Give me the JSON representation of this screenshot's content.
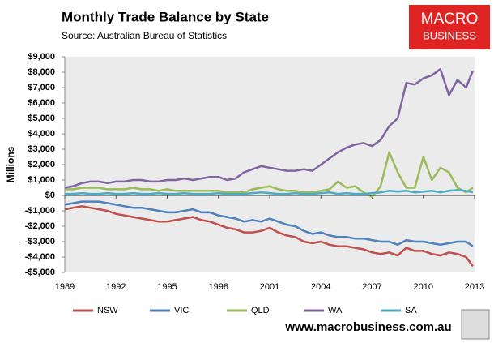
{
  "chart_data": {
    "type": "line",
    "title": "Monthly Trade Balance by State",
    "subtitle": "Source: Australian Bureau of Statistics",
    "y_label": "Millions",
    "logo": [
      "MACRO",
      "BUSINESS"
    ],
    "website": "www.macrobusiness.com.au",
    "x": [
      1989,
      1989.5,
      1990,
      1990.5,
      1991,
      1991.5,
      1992,
      1992.5,
      1993,
      1993.5,
      1994,
      1994.5,
      1995,
      1995.5,
      1996,
      1996.5,
      1997,
      1997.5,
      1998,
      1998.5,
      1999,
      1999.5,
      2000,
      2000.5,
      2001,
      2001.5,
      2002,
      2002.5,
      2003,
      2003.5,
      2004,
      2004.5,
      2005,
      2005.5,
      2006,
      2006.5,
      2007,
      2007.5,
      2008,
      2008.5,
      2009,
      2009.5,
      2010,
      2010.5,
      2011,
      2011.5,
      2012,
      2012.5,
      2012.9
    ],
    "series": [
      {
        "name": "NSW",
        "color": "#c0504d",
        "values": [
          -900,
          -800,
          -700,
          -800,
          -900,
          -1000,
          -1200,
          -1300,
          -1400,
          -1500,
          -1600,
          -1700,
          -1700,
          -1600,
          -1500,
          -1400,
          -1600,
          -1700,
          -1900,
          -2100,
          -2200,
          -2400,
          -2400,
          -2300,
          -2100,
          -2400,
          -2600,
          -2700,
          -3000,
          -3100,
          -3000,
          -3200,
          -3300,
          -3300,
          -3400,
          -3500,
          -3700,
          -3800,
          -3700,
          -3900,
          -3400,
          -3600,
          -3600,
          -3800,
          -3900,
          -3700,
          -3800,
          -4000,
          -4600
        ]
      },
      {
        "name": "VIC",
        "color": "#4f81bd",
        "values": [
          -600,
          -500,
          -400,
          -400,
          -400,
          -500,
          -600,
          -700,
          -800,
          -800,
          -900,
          -1000,
          -1100,
          -1100,
          -1000,
          -900,
          -1100,
          -1100,
          -1300,
          -1400,
          -1500,
          -1700,
          -1600,
          -1700,
          -1500,
          -1700,
          -1900,
          -2000,
          -2300,
          -2500,
          -2400,
          -2600,
          -2700,
          -2700,
          -2800,
          -2800,
          -2900,
          -3000,
          -3000,
          -3200,
          -2900,
          -3000,
          -3000,
          -3100,
          -3200,
          -3100,
          -3000,
          -3000,
          -3300
        ]
      },
      {
        "name": "QLD",
        "color": "#9bbb59",
        "values": [
          400,
          400,
          500,
          500,
          500,
          400,
          400,
          400,
          500,
          400,
          400,
          300,
          400,
          300,
          300,
          300,
          300,
          300,
          300,
          200,
          200,
          200,
          400,
          500,
          600,
          400,
          300,
          300,
          200,
          200,
          300,
          400,
          900,
          500,
          600,
          200,
          -100,
          600,
          2800,
          1500,
          500,
          500,
          2500,
          1000,
          1800,
          1500,
          500,
          200,
          500
        ]
      },
      {
        "name": "WA",
        "color": "#8064a2",
        "values": [
          500,
          600,
          800,
          900,
          900,
          800,
          900,
          900,
          1000,
          1000,
          900,
          900,
          1000,
          1000,
          1100,
          1000,
          1100,
          1200,
          1200,
          1000,
          1100,
          1500,
          1700,
          1900,
          1800,
          1700,
          1600,
          1600,
          1700,
          1600,
          2000,
          2400,
          2800,
          3100,
          3300,
          3400,
          3200,
          3600,
          4500,
          5000,
          7300,
          7200,
          7600,
          7800,
          8200,
          6500,
          7500,
          7000,
          8100
        ]
      },
      {
        "name": "SA",
        "color": "#4bacc6",
        "values": [
          100,
          100,
          150,
          100,
          100,
          150,
          100,
          100,
          150,
          100,
          100,
          150,
          100,
          100,
          150,
          100,
          100,
          100,
          150,
          100,
          100,
          100,
          150,
          200,
          150,
          100,
          100,
          150,
          100,
          100,
          150,
          200,
          100,
          150,
          100,
          100,
          150,
          200,
          300,
          250,
          300,
          200,
          250,
          300,
          200,
          300,
          350,
          300,
          200
        ]
      }
    ],
    "xlim": [
      1989,
      2013
    ],
    "xticks": [
      1989,
      1992,
      1995,
      1998,
      2001,
      2004,
      2007,
      2010,
      2013
    ],
    "ylim": [
      -5000,
      9000
    ],
    "yticks": [
      {
        "value": -5000,
        "label": "-$5,000"
      },
      {
        "value": -4000,
        "label": "-$4,000"
      },
      {
        "value": -3000,
        "label": "-$3,000"
      },
      {
        "value": -2000,
        "label": "-$2,000"
      },
      {
        "value": -1000,
        "label": "-$1,000"
      },
      {
        "value": 0,
        "label": "$0"
      },
      {
        "value": 1000,
        "label": "$1,000"
      },
      {
        "value": 2000,
        "label": "$2,000"
      },
      {
        "value": 3000,
        "label": "$3,000"
      },
      {
        "value": 4000,
        "label": "$4,000"
      },
      {
        "value": 5000,
        "label": "$5,000"
      },
      {
        "value": 6000,
        "label": "$6,000"
      },
      {
        "value": 7000,
        "label": "$7,000"
      },
      {
        "value": 8000,
        "label": "$8,000"
      },
      {
        "value": 9000,
        "label": "$9,000"
      }
    ],
    "grid": false,
    "legend": "bottom"
  }
}
